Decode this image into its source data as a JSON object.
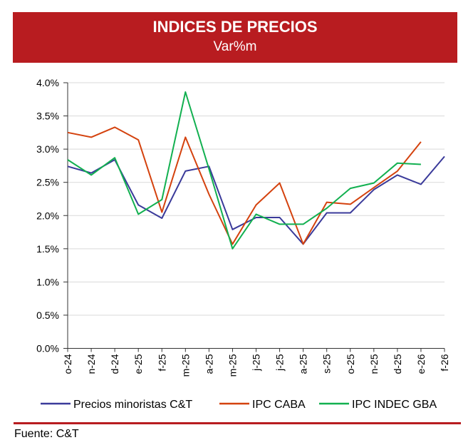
{
  "header": {
    "title": "INDICES DE PRECIOS",
    "subtitle": "Var%m"
  },
  "footer": {
    "source": "Fuente: C&T"
  },
  "chart_data": {
    "type": "line",
    "title": "INDICES DE PRECIOS",
    "subtitle": "Var%m",
    "categories": [
      "o-24",
      "n-24",
      "d-24",
      "e-25",
      "f-25",
      "m-25",
      "a-25",
      "m-25",
      "j-25",
      "j-25",
      "a-25",
      "s-25",
      "o-25",
      "n-25",
      "d-25",
      "e-26",
      "f-26"
    ],
    "ylim": [
      0,
      4.0
    ],
    "yticks": [
      "0.0%",
      "0.5%",
      "1.0%",
      "1.5%",
      "2.0%",
      "2.5%",
      "3.0%",
      "3.5%",
      "4.0%"
    ],
    "grid": true,
    "legend": "bottom",
    "series": [
      {
        "name": "Precios minoristas C&T",
        "color": "#3A3A9A",
        "values": [
          2.74,
          2.64,
          2.84,
          2.16,
          1.96,
          2.67,
          2.74,
          1.79,
          1.97,
          1.97,
          1.57,
          2.04,
          2.04,
          2.39,
          2.61,
          2.47,
          2.89
        ]
      },
      {
        "name": "IPC CABA",
        "color": "#D4420E",
        "values": [
          3.25,
          3.18,
          3.33,
          3.14,
          2.05,
          3.18,
          2.32,
          1.57,
          2.16,
          2.49,
          1.57,
          2.2,
          2.17,
          2.42,
          2.67,
          3.11,
          null
        ]
      },
      {
        "name": "IPC INDEC GBA",
        "color": "#12B050",
        "values": [
          2.84,
          2.61,
          2.87,
          2.02,
          2.24,
          3.86,
          2.7,
          1.5,
          2.02,
          1.87,
          1.87,
          2.11,
          2.41,
          2.49,
          2.79,
          2.77,
          null
        ]
      }
    ]
  }
}
